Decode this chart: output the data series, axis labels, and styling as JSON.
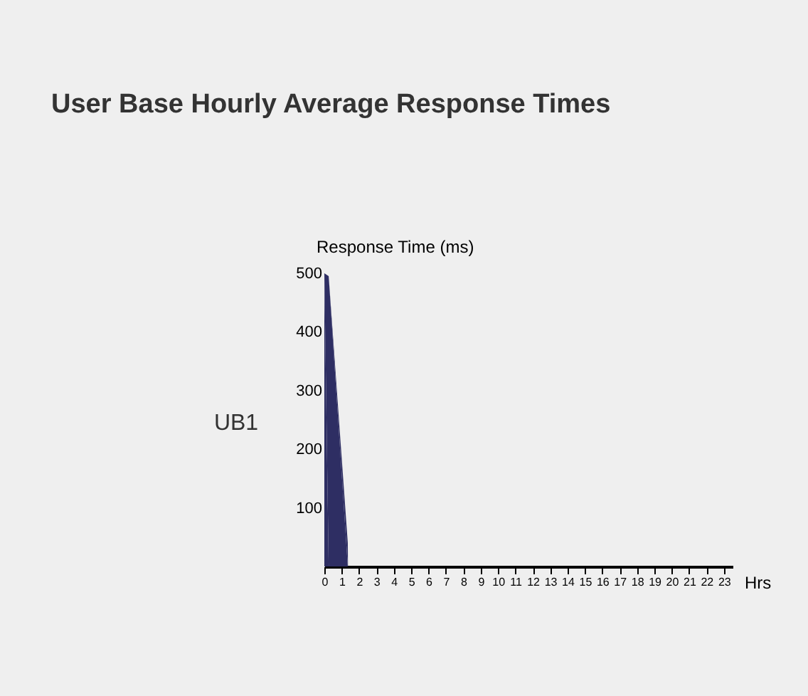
{
  "chart_data": {
    "type": "area",
    "title": "User Base Hourly Average Response Times",
    "ylabel": "Response Time (ms)",
    "xlabel": "Hrs",
    "annotations": [
      "UB1"
    ],
    "x": [
      0,
      0.25,
      1.35,
      1.36,
      23
    ],
    "series": [
      {
        "color": "#2e2e63",
        "values": [
          500,
          495,
          40,
          0,
          0
        ]
      }
    ],
    "xlim": [
      0,
      23.5
    ],
    "xticks": [
      0,
      1,
      2,
      3,
      4,
      5,
      6,
      7,
      8,
      9,
      10,
      11,
      12,
      13,
      14,
      15,
      16,
      17,
      18,
      19,
      20,
      21,
      22,
      23
    ],
    "ylim": [
      0,
      500
    ],
    "yticks": [
      100,
      200,
      300,
      400,
      500
    ],
    "grid": false,
    "legend": false
  }
}
